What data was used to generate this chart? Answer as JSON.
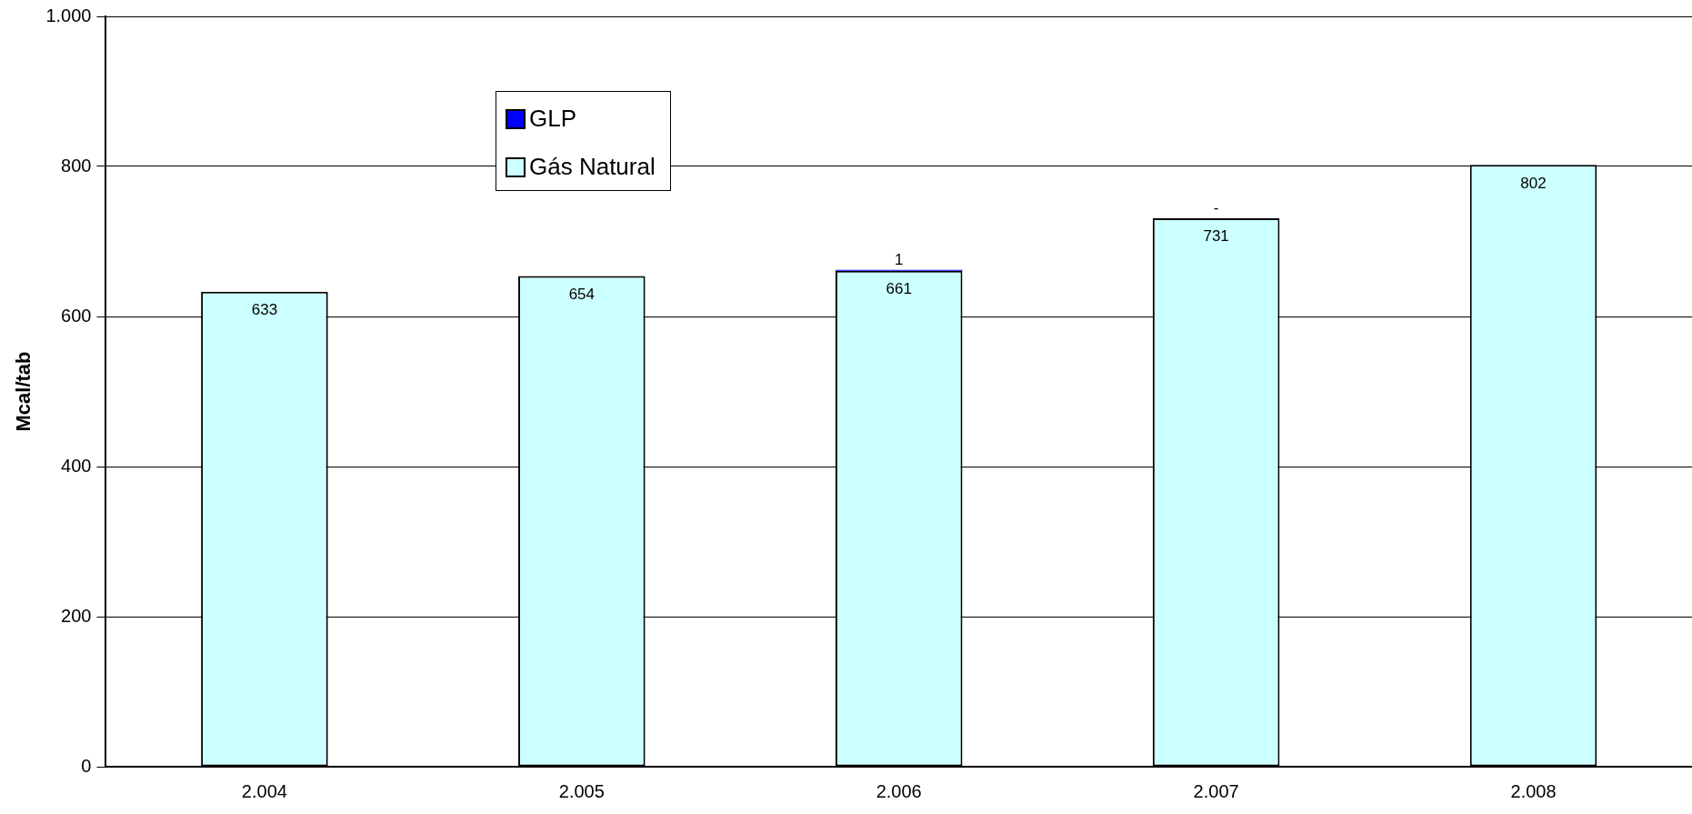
{
  "chart_data": {
    "type": "bar",
    "ylabel": "Mcal/tab",
    "categories": [
      "2.004",
      "2.005",
      "2.006",
      "2.007",
      "2.008"
    ],
    "stacked": true,
    "series": [
      {
        "name": "Gás Natural",
        "color": "#ccffff",
        "values": [
          633,
          654,
          661,
          731,
          802
        ],
        "value_labels": [
          "633",
          "654",
          "661",
          "731",
          "802"
        ]
      },
      {
        "name": "GLP",
        "color": "#0000ff",
        "values": [
          null,
          null,
          1,
          0,
          null
        ],
        "value_labels": [
          null,
          null,
          "1",
          "-",
          null
        ]
      }
    ],
    "ylim": [
      0,
      1000
    ],
    "yticks": [
      0,
      200,
      400,
      600,
      800,
      {
        "value": 1000,
        "label": "1.000"
      }
    ],
    "grid": "y",
    "legend": "top left"
  }
}
